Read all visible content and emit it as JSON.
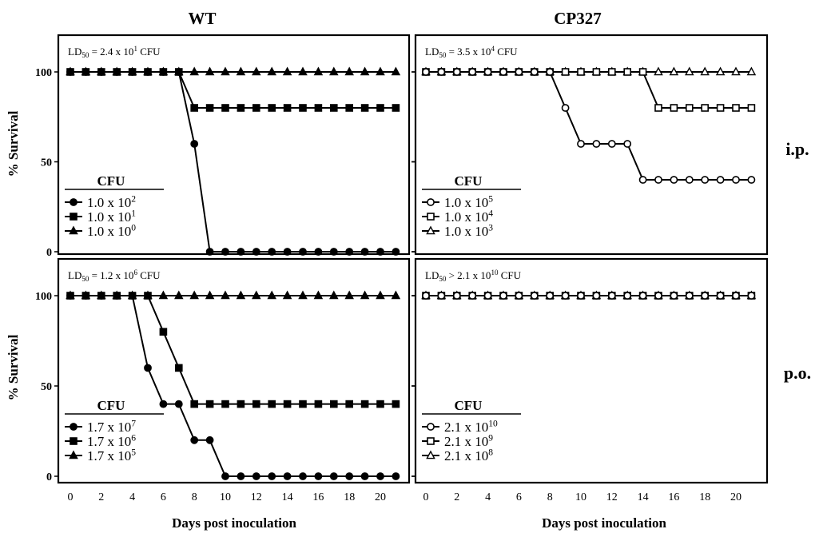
{
  "column_titles": [
    "WT",
    "CP327"
  ],
  "row_labels": [
    "i.p.",
    "p.o."
  ],
  "ylabel": "% Survival",
  "xlabel": "Days post inoculation",
  "legend_title": "CFU",
  "chart_data": [
    {
      "type": "line",
      "ld50_label": "LD",
      "ld50_sub": "50",
      "ld50_text": " = 2.4 x 10",
      "ld50_exp": "1",
      "ld50_unit": " CFU",
      "x": [
        0,
        1,
        2,
        3,
        4,
        5,
        6,
        7,
        8,
        9,
        10,
        11,
        12,
        13,
        14,
        15,
        16,
        17,
        18,
        19,
        20,
        21
      ],
      "xticks": [
        0,
        2,
        4,
        6,
        8,
        10,
        12,
        14,
        16,
        18,
        20
      ],
      "yticks": [
        0,
        50,
        100
      ],
      "ylim": [
        0,
        100
      ],
      "xlim": [
        -1,
        21.9
      ],
      "series": [
        {
          "name_base": "1.0 x 10",
          "name_exp": "2",
          "marker": "circle",
          "filled": true,
          "values": [
            100,
            100,
            100,
            100,
            100,
            100,
            100,
            100,
            60,
            0,
            0,
            0,
            0,
            0,
            0,
            0,
            0,
            0,
            0,
            0,
            0,
            0
          ]
        },
        {
          "name_base": "1.0 x 10",
          "name_exp": "1",
          "marker": "square",
          "filled": true,
          "values": [
            100,
            100,
            100,
            100,
            100,
            100,
            100,
            100,
            80,
            80,
            80,
            80,
            80,
            80,
            80,
            80,
            80,
            80,
            80,
            80,
            80,
            80
          ]
        },
        {
          "name_base": "1.0 x 10",
          "name_exp": "0",
          "marker": "triangle",
          "filled": true,
          "values": [
            100,
            100,
            100,
            100,
            100,
            100,
            100,
            100,
            100,
            100,
            100,
            100,
            100,
            100,
            100,
            100,
            100,
            100,
            100,
            100,
            100,
            100
          ]
        }
      ]
    },
    {
      "type": "line",
      "ld50_label": "LD",
      "ld50_sub": "50",
      "ld50_text": " = 3.5 x 10",
      "ld50_exp": "4",
      "ld50_unit": " CFU",
      "x": [
        0,
        1,
        2,
        3,
        4,
        5,
        6,
        7,
        8,
        9,
        10,
        11,
        12,
        13,
        14,
        15,
        16,
        17,
        18,
        19,
        20,
        21
      ],
      "xticks": [
        0,
        2,
        4,
        6,
        8,
        10,
        12,
        14,
        16,
        18,
        20
      ],
      "yticks": [
        0,
        50,
        100
      ],
      "ylim": [
        0,
        100
      ],
      "xlim": [
        -1,
        21.9
      ],
      "series": [
        {
          "name_base": "1.0 x 10",
          "name_exp": "5",
          "marker": "circle",
          "filled": false,
          "values": [
            100,
            100,
            100,
            100,
            100,
            100,
            100,
            100,
            100,
            80,
            60,
            60,
            60,
            60,
            40,
            40,
            40,
            40,
            40,
            40,
            40,
            40
          ]
        },
        {
          "name_base": "1.0 x 10",
          "name_exp": "4",
          "marker": "square",
          "filled": false,
          "values": [
            100,
            100,
            100,
            100,
            100,
            100,
            100,
            100,
            100,
            100,
            100,
            100,
            100,
            100,
            100,
            80,
            80,
            80,
            80,
            80,
            80,
            80
          ]
        },
        {
          "name_base": "1.0 x 10",
          "name_exp": "3",
          "marker": "triangle",
          "filled": false,
          "values": [
            100,
            100,
            100,
            100,
            100,
            100,
            100,
            100,
            100,
            100,
            100,
            100,
            100,
            100,
            100,
            100,
            100,
            100,
            100,
            100,
            100,
            100
          ]
        }
      ]
    },
    {
      "type": "line",
      "ld50_label": "LD",
      "ld50_sub": "50",
      "ld50_text": " = 1.2 x 10",
      "ld50_exp": "6",
      "ld50_unit": " CFU",
      "x": [
        0,
        1,
        2,
        3,
        4,
        5,
        6,
        7,
        8,
        9,
        10,
        11,
        12,
        13,
        14,
        15,
        16,
        17,
        18,
        19,
        20,
        21
      ],
      "xticks": [
        0,
        2,
        4,
        6,
        8,
        10,
        12,
        14,
        16,
        18,
        20
      ],
      "yticks": [
        0,
        50,
        100
      ],
      "ylim": [
        0,
        100
      ],
      "xlim": [
        -1,
        21.9
      ],
      "series": [
        {
          "name_base": "1.7 x 10",
          "name_exp": "7",
          "marker": "circle",
          "filled": true,
          "values": [
            100,
            100,
            100,
            100,
            100,
            60,
            40,
            40,
            20,
            20,
            0,
            0,
            0,
            0,
            0,
            0,
            0,
            0,
            0,
            0,
            0,
            0
          ]
        },
        {
          "name_base": "1.7 x 10",
          "name_exp": "6",
          "marker": "square",
          "filled": true,
          "values": [
            100,
            100,
            100,
            100,
            100,
            100,
            80,
            60,
            40,
            40,
            40,
            40,
            40,
            40,
            40,
            40,
            40,
            40,
            40,
            40,
            40,
            40
          ]
        },
        {
          "name_base": "1.7 x 10",
          "name_exp": "5",
          "marker": "triangle",
          "filled": true,
          "values": [
            100,
            100,
            100,
            100,
            100,
            100,
            100,
            100,
            100,
            100,
            100,
            100,
            100,
            100,
            100,
            100,
            100,
            100,
            100,
            100,
            100,
            100
          ]
        }
      ]
    },
    {
      "type": "line",
      "ld50_label": "LD",
      "ld50_sub": "50",
      "ld50_text": " > 2.1 x 10",
      "ld50_exp": "10",
      "ld50_unit": " CFU",
      "x": [
        0,
        1,
        2,
        3,
        4,
        5,
        6,
        7,
        8,
        9,
        10,
        11,
        12,
        13,
        14,
        15,
        16,
        17,
        18,
        19,
        20,
        21
      ],
      "xticks": [
        0,
        2,
        4,
        6,
        8,
        10,
        12,
        14,
        16,
        18,
        20
      ],
      "yticks": [
        0,
        50,
        100
      ],
      "ylim": [
        0,
        100
      ],
      "xlim": [
        -1,
        21.9
      ],
      "series": [
        {
          "name_base": "2.1 x 10",
          "name_exp": "10",
          "marker": "circle",
          "filled": false,
          "values": [
            100,
            100,
            100,
            100,
            100,
            100,
            100,
            100,
            100,
            100,
            100,
            100,
            100,
            100,
            100,
            100,
            100,
            100,
            100,
            100,
            100,
            100
          ]
        },
        {
          "name_base": "2.1 x 10",
          "name_exp": "9",
          "marker": "square",
          "filled": false,
          "values": [
            100,
            100,
            100,
            100,
            100,
            100,
            100,
            100,
            100,
            100,
            100,
            100,
            100,
            100,
            100,
            100,
            100,
            100,
            100,
            100,
            100,
            100
          ]
        },
        {
          "name_base": "2.1 x 10",
          "name_exp": "8",
          "marker": "triangle",
          "filled": false,
          "values": [
            100,
            100,
            100,
            100,
            100,
            100,
            100,
            100,
            100,
            100,
            100,
            100,
            100,
            100,
            100,
            100,
            100,
            100,
            100,
            100,
            100,
            100
          ]
        }
      ]
    }
  ]
}
